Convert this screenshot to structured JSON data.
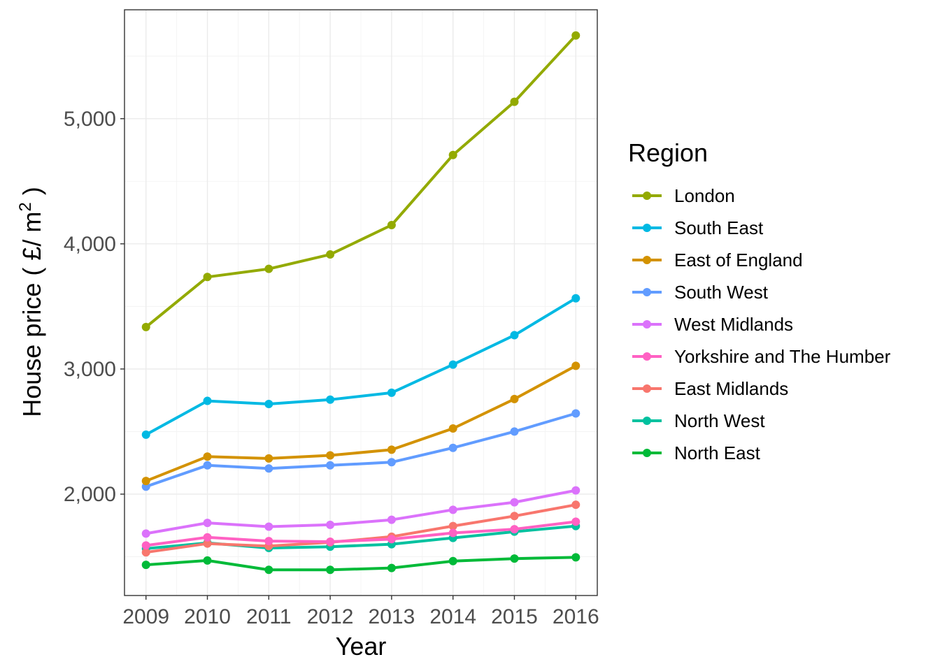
{
  "chart_data": {
    "type": "line",
    "xlabel": "Year",
    "ylabel_main": "House price ( £/ m",
    "ylabel_sup": "2",
    "ylabel_close": " )",
    "x": [
      2009,
      2010,
      2011,
      2012,
      2013,
      2014,
      2015,
      2016
    ],
    "xtick_labels": [
      "2009",
      "2010",
      "2011",
      "2012",
      "2013",
      "2014",
      "2015",
      "2016"
    ],
    "yticks": [
      2000,
      3000,
      4000,
      5000
    ],
    "ytick_labels": [
      "2,000",
      "3,000",
      "4,000",
      "5,000"
    ],
    "ylim": [
      1190,
      5870
    ],
    "xlim": [
      2008.65,
      2016.35
    ],
    "grid": true,
    "legend": {
      "title": "Region",
      "position": "right"
    },
    "series": [
      {
        "name": "London",
        "color": "#93aa00",
        "values": [
          3335,
          3735,
          3800,
          3915,
          4150,
          4710,
          5135,
          5665
        ]
      },
      {
        "name": "South East",
        "color": "#00b9e3",
        "values": [
          2475,
          2745,
          2720,
          2755,
          2810,
          3035,
          3270,
          3565
        ]
      },
      {
        "name": "East of England",
        "color": "#d39200",
        "values": [
          2105,
          2300,
          2285,
          2310,
          2355,
          2525,
          2760,
          3025
        ]
      },
      {
        "name": "South West",
        "color": "#619cff",
        "values": [
          2060,
          2230,
          2205,
          2230,
          2255,
          2370,
          2500,
          2645
        ]
      },
      {
        "name": "West Midlands",
        "color": "#db72fb",
        "values": [
          1685,
          1770,
          1740,
          1755,
          1795,
          1875,
          1935,
          2030
        ]
      },
      {
        "name": "Yorkshire and The Humber",
        "color": "#ff61c3",
        "values": [
          1590,
          1655,
          1625,
          1620,
          1640,
          1690,
          1720,
          1780
        ]
      },
      {
        "name": "East Midlands",
        "color": "#f8766d",
        "values": [
          1535,
          1605,
          1585,
          1615,
          1660,
          1745,
          1825,
          1915
        ]
      },
      {
        "name": "North West",
        "color": "#00c19f",
        "values": [
          1565,
          1610,
          1570,
          1580,
          1600,
          1650,
          1700,
          1745
        ]
      },
      {
        "name": "North East",
        "color": "#00ba38",
        "values": [
          1435,
          1470,
          1395,
          1395,
          1410,
          1465,
          1485,
          1495
        ]
      }
    ]
  }
}
